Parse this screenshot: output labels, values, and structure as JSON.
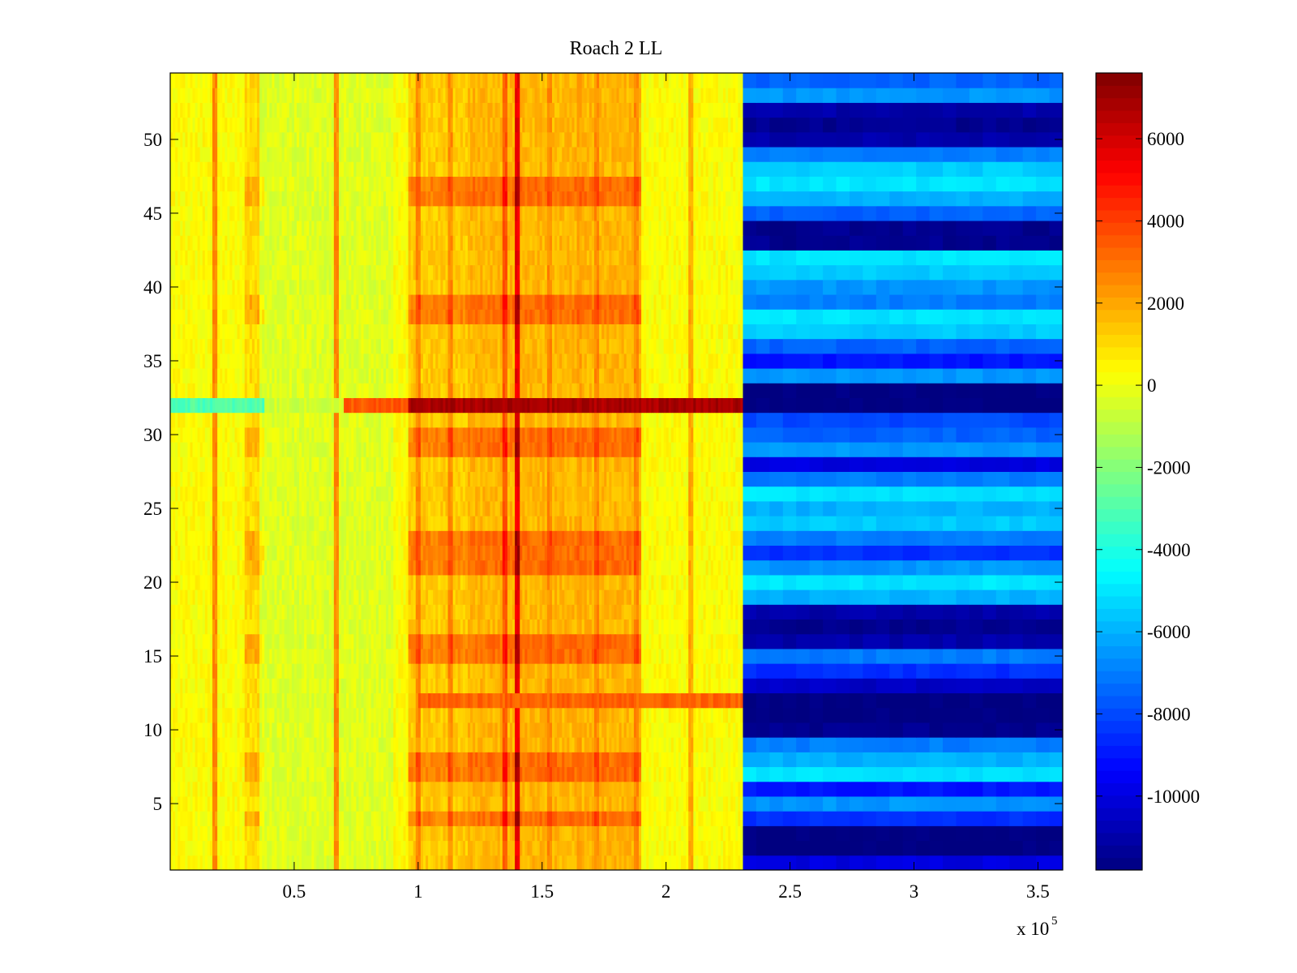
{
  "chart_data": {
    "type": "heatmap",
    "title": "Roach 2 LL",
    "xlabel": "",
    "ylabel": "",
    "x_exponent_label": "x 10",
    "x_exponent": "5",
    "xlim": [
      0,
      360000
    ],
    "ylim": [
      0.5,
      54.5
    ],
    "xticks": [
      50000,
      100000,
      150000,
      200000,
      250000,
      300000,
      350000
    ],
    "xtick_labels": [
      "0.5",
      "1",
      "1.5",
      "2",
      "2.5",
      "3",
      "3.5"
    ],
    "yticks": [
      5,
      10,
      15,
      20,
      25,
      30,
      35,
      40,
      45,
      50
    ],
    "ytick_labels": [
      "5",
      "10",
      "15",
      "20",
      "25",
      "30",
      "35",
      "40",
      "45",
      "50"
    ],
    "colorbar": {
      "colormap": "jet",
      "clim": [
        -11800,
        7600
      ],
      "ticks": [
        -10000,
        -8000,
        -6000,
        -4000,
        -2000,
        0,
        2000,
        4000,
        6000
      ],
      "tick_labels": [
        "-10000",
        "-8000",
        "-6000",
        "-4000",
        "-2000",
        "0",
        "2000",
        "4000",
        "6000"
      ]
    },
    "grid": false,
    "n_rows": 54,
    "transition_x": 231000,
    "row_values_after_transition": [
      -10000,
      -11800,
      -11800,
      -8500,
      -6500,
      -9000,
      -5000,
      -6000,
      -7000,
      -11500,
      -11800,
      -11800,
      -10500,
      -8500,
      -7000,
      -11000,
      -11500,
      -11000,
      -6000,
      -5000,
      -6500,
      -8500,
      -7000,
      -5500,
      -6000,
      -5000,
      -7000,
      -10000,
      -6500,
      -7500,
      -8000,
      -11800,
      -11800,
      -6500,
      -9000,
      -7500,
      -5500,
      -5000,
      -7000,
      -6500,
      -5500,
      -5000,
      -11500,
      -11500,
      -7500,
      -6000,
      -5000,
      -5500,
      -7000,
      -11000,
      -11500,
      -11000,
      -6500,
      -7500
    ],
    "hot_columns": [
      {
        "x": 18000,
        "value": 2500
      },
      {
        "x": 67000,
        "value": 2500
      },
      {
        "x": 100000,
        "value": 2500
      },
      {
        "x": 113000,
        "value": 2500
      },
      {
        "x": 135000,
        "value": 3500
      },
      {
        "x": 140000,
        "value": 5500
      },
      {
        "x": 153000,
        "value": 2500
      },
      {
        "x": 165000,
        "value": 2000
      },
      {
        "x": 172000,
        "value": 2500
      },
      {
        "x": 188000,
        "value": 2500
      },
      {
        "x": 210000,
        "value": 2000
      }
    ],
    "warm_bands": [
      {
        "x0": 96000,
        "x1": 120000,
        "value": 1300
      },
      {
        "x0": 120000,
        "x1": 190000,
        "value": 1700
      },
      {
        "x0": 30000,
        "x1": 38000,
        "value": 1000
      }
    ],
    "cool_band": {
      "x0": 36000,
      "x1": 90000,
      "value": -300
    },
    "hot_row_patches": [
      4,
      7,
      8,
      15,
      16,
      21,
      22,
      23,
      29,
      30,
      38,
      39,
      46,
      47
    ],
    "anomaly_row": {
      "row": 32,
      "segments": [
        {
          "x0": 0,
          "x1": 38000,
          "value": -3000
        },
        {
          "x0": 38000,
          "x1": 70000,
          "value": -600
        },
        {
          "x0": 70000,
          "x1": 96000,
          "value": 3500
        },
        {
          "x0": 96000,
          "x1": 231000,
          "value": 6800
        }
      ]
    },
    "row_12_stripe": {
      "row": 12,
      "x0": 100000,
      "x1": 231000,
      "value": 3300
    }
  }
}
